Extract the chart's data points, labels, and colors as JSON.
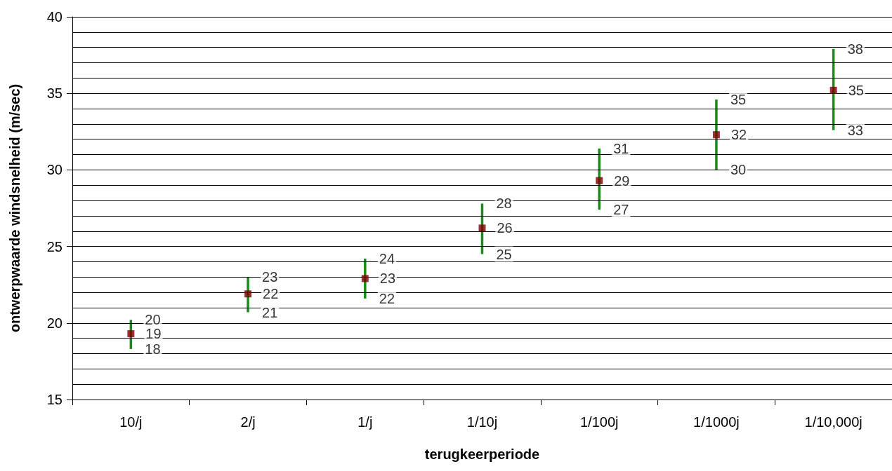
{
  "chart_data": {
    "type": "scatter",
    "xlabel": "terugkeerperiode",
    "ylabel": "ontwerpwaarde windsnelheid (m/sec)",
    "categories": [
      "10/j",
      "2/j",
      "1/j",
      "1/10j",
      "1/100j",
      "1/1000j",
      "1/10,000j"
    ],
    "values": [
      19.3,
      21.9,
      22.9,
      26.2,
      29.3,
      32.3,
      35.2
    ],
    "value_labels": [
      "19",
      "22",
      "23",
      "26",
      "29",
      "32",
      "35"
    ],
    "errors": [
      [
        18.3,
        20.2
      ],
      [
        20.7,
        23.0
      ],
      [
        21.6,
        24.2
      ],
      [
        24.5,
        27.8
      ],
      [
        27.4,
        31.4
      ],
      [
        30.0,
        34.6
      ],
      [
        32.6,
        37.9
      ]
    ],
    "color": "#800000",
    "marker": "square",
    "annotations": [
      {
        "text": "20",
        "x": "10/j",
        "y": 20.2
      },
      {
        "text": "18",
        "x": "10/j",
        "y": 18.3
      },
      {
        "text": "23",
        "x": "2/j",
        "y": 23.0
      },
      {
        "text": "21",
        "x": "2/j",
        "y": 20.7
      },
      {
        "text": "24",
        "x": "1/j",
        "y": 24.2
      },
      {
        "text": "22",
        "x": "1/j",
        "y": 21.6
      },
      {
        "text": "28",
        "x": "1/10j",
        "y": 27.8
      },
      {
        "text": "25",
        "x": "1/10j",
        "y": 24.5
      },
      {
        "text": "31",
        "x": "1/100j",
        "y": 31.4
      },
      {
        "text": "27",
        "x": "1/100j",
        "y": 27.4
      },
      {
        "text": "35",
        "x": "1/1000j",
        "y": 34.6
      },
      {
        "text": "30",
        "x": "1/1000j",
        "y": 30.0
      },
      {
        "text": "38",
        "x": "1/10,000j",
        "y": 37.9
      },
      {
        "text": "33",
        "x": "1/10,000j",
        "y": 32.6
      }
    ],
    "ylim": [
      15,
      40
    ],
    "yticks": [
      15,
      {
        "value": 16,
        "label": null
      },
      {
        "value": 17,
        "label": null
      },
      {
        "value": 18,
        "label": null
      },
      {
        "value": 19,
        "label": null
      },
      20,
      {
        "value": 21,
        "label": null
      },
      {
        "value": 22,
        "label": null
      },
      {
        "value": 23,
        "label": null
      },
      {
        "value": 24,
        "label": null
      },
      25,
      {
        "value": 26,
        "label": null
      },
      {
        "value": 27,
        "label": null
      },
      {
        "value": 28,
        "label": null
      },
      {
        "value": 29,
        "label": null
      },
      30,
      {
        "value": 31,
        "label": null
      },
      {
        "value": 32,
        "label": null
      },
      {
        "value": 33,
        "label": null
      },
      {
        "value": 34,
        "label": null
      },
      35,
      {
        "value": 36,
        "label": null
      },
      {
        "value": 37,
        "label": null
      },
      {
        "value": 38,
        "label": null
      },
      {
        "value": 39,
        "label": null
      },
      40
    ],
    "grid": "y",
    "legend": false
  }
}
